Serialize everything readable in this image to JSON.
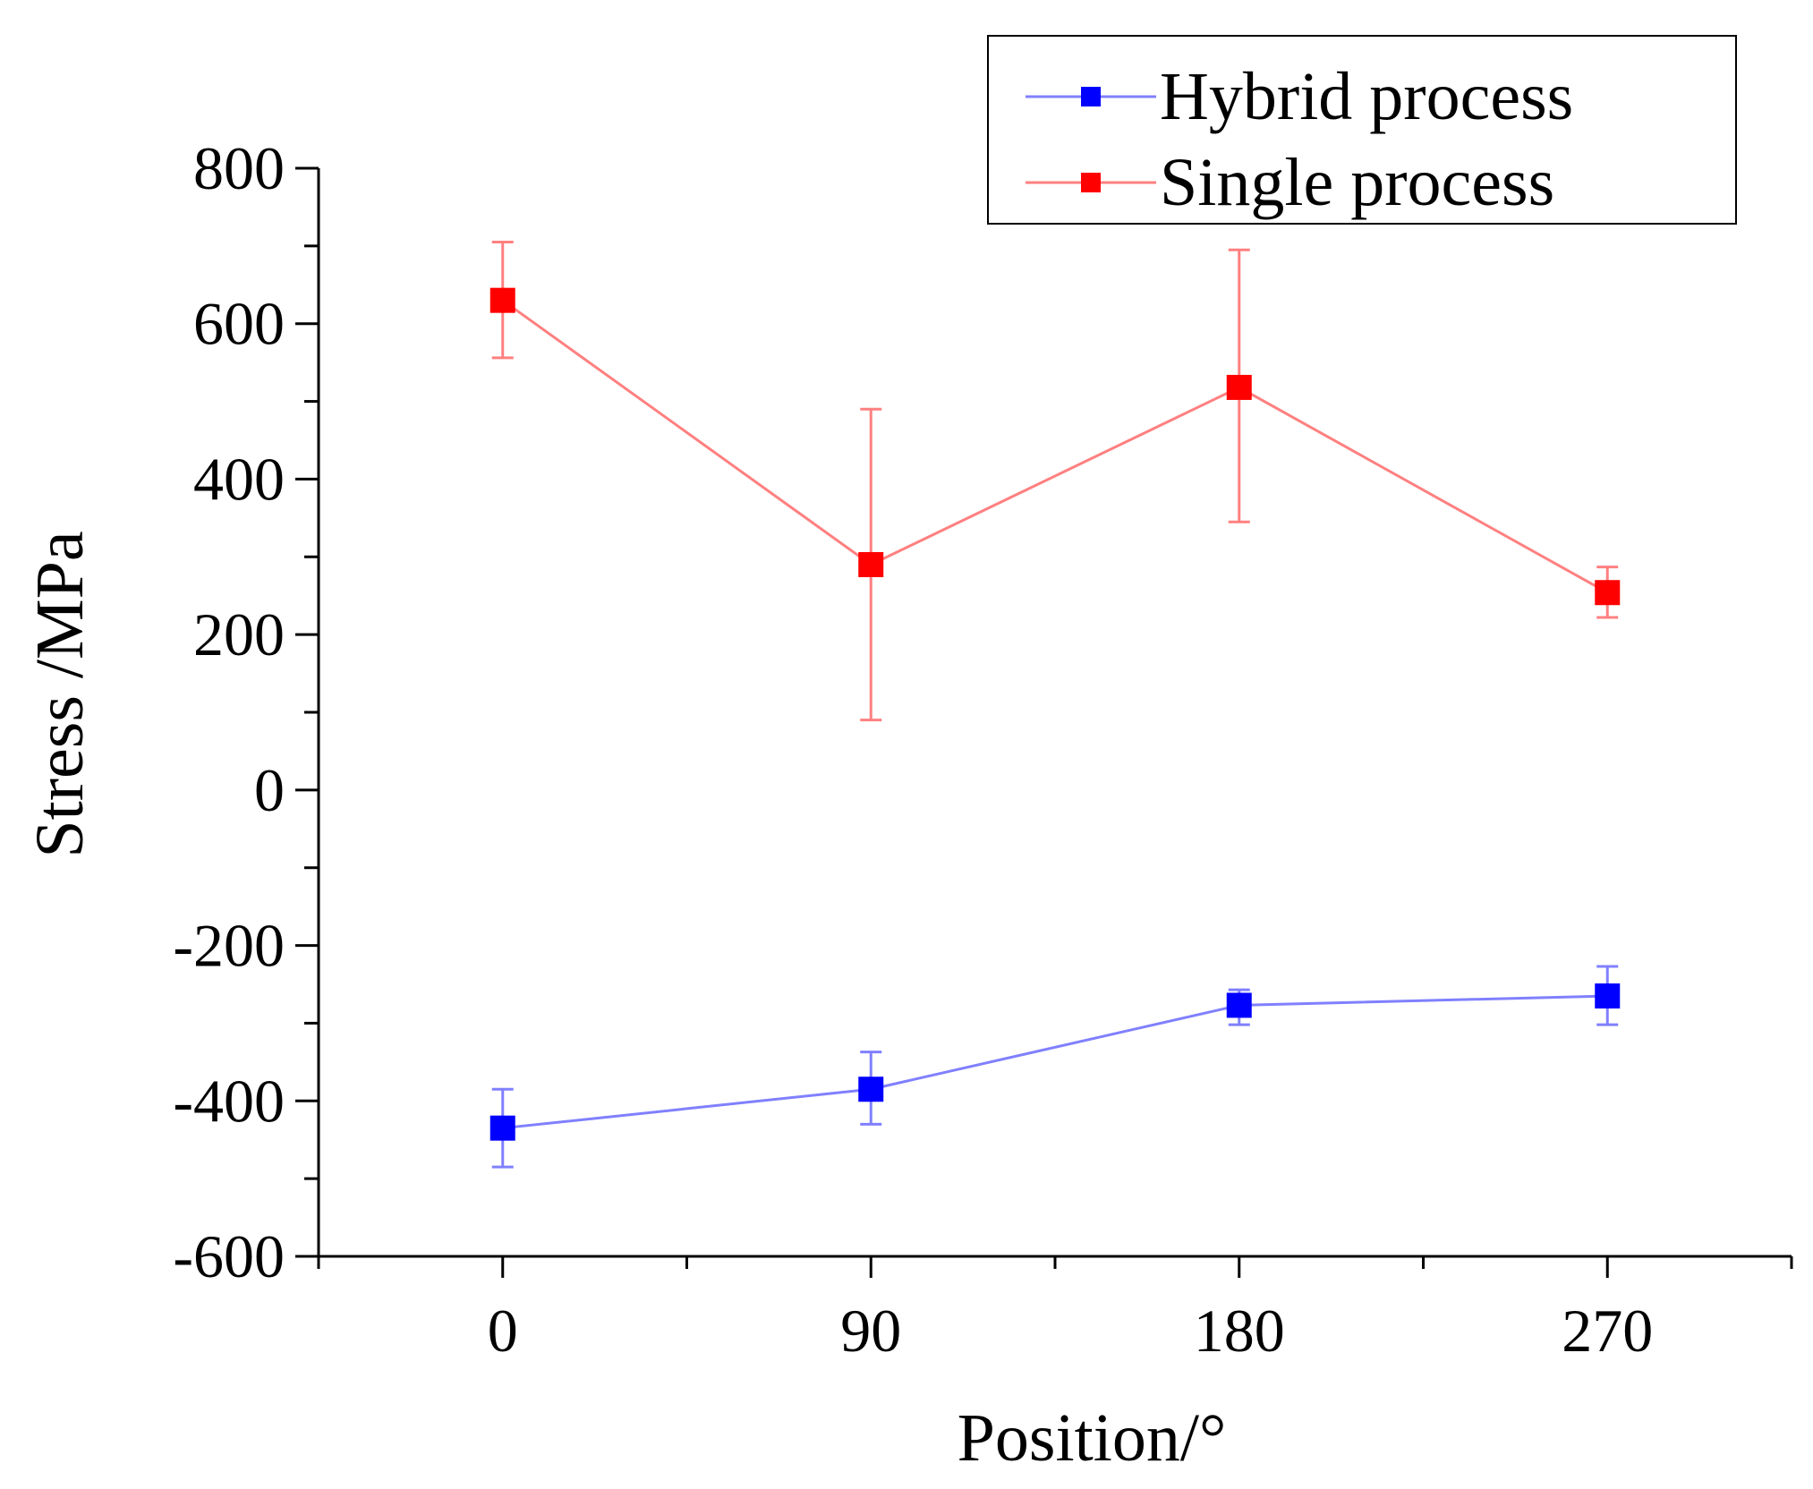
{
  "chart_data": {
    "type": "line",
    "title": "",
    "xlabel": "Position/°",
    "ylabel": "Stress /MPa",
    "x": [
      0,
      90,
      180,
      270
    ],
    "x_tick_labels": [
      "0",
      "90",
      "180",
      "270"
    ],
    "xlim": [
      -45,
      315
    ],
    "ylim": [
      -600,
      800
    ],
    "y_ticks": [
      -600,
      -400,
      -200,
      0,
      200,
      400,
      600,
      800
    ],
    "y_tick_labels": [
      "-600",
      "-400",
      "-200",
      "0",
      "200",
      "400",
      "600",
      "800"
    ],
    "grid": false,
    "legend_position": "top-right",
    "series": [
      {
        "name": "Hybrid process",
        "line_color": "#8080ff",
        "marker_color": "#0000ff",
        "values": [
          -435,
          -385,
          -277,
          -265
        ],
        "err_low": [
          -485,
          -430,
          -302,
          -302
        ],
        "err_high": [
          -385,
          -337,
          -257,
          -227
        ]
      },
      {
        "name": "Single process",
        "line_color": "#ff8080",
        "marker_color": "#ff0000",
        "values": [
          630,
          290,
          518,
          254
        ],
        "err_low": [
          556,
          90,
          345,
          222
        ],
        "err_high": [
          705,
          490,
          695,
          287
        ]
      }
    ]
  }
}
